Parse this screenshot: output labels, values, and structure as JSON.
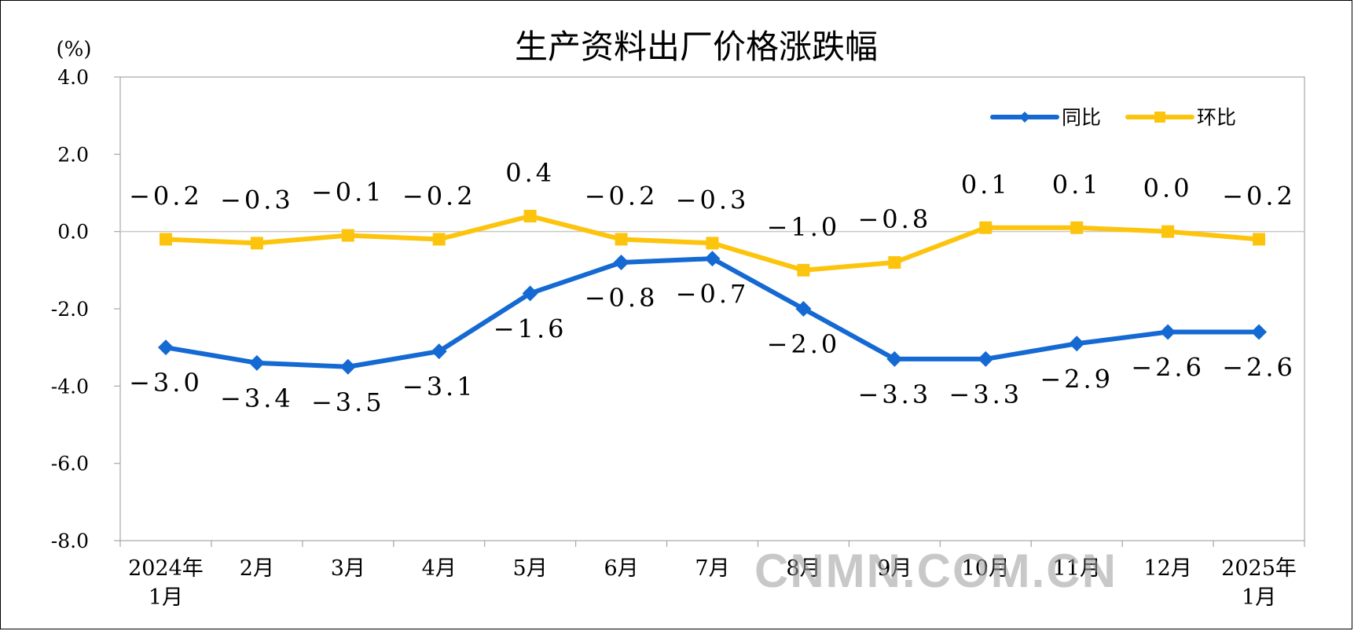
{
  "chart_data": {
    "type": "line",
    "title": "生产资料出厂价格涨跌幅",
    "unit": "(%)",
    "ylim": [
      -8.0,
      4.0
    ],
    "yticks": [
      "4.0",
      "2.0",
      "0.0",
      "-2.0",
      "-4.0",
      "-6.0",
      "-8.0"
    ],
    "categories": [
      "2024年 1月",
      "2月",
      "3月",
      "4月",
      "5月",
      "6月",
      "7月",
      "8月",
      "9月",
      "10月",
      "11月",
      "12月",
      "2025年 1月"
    ],
    "category_lines": [
      [
        "2024年",
        "1月"
      ],
      [
        "2月"
      ],
      [
        "3月"
      ],
      [
        "4月"
      ],
      [
        "5月"
      ],
      [
        "6月"
      ],
      [
        "7月"
      ],
      [
        "8月"
      ],
      [
        "9月"
      ],
      [
        "10月"
      ],
      [
        "11月"
      ],
      [
        "12月"
      ],
      [
        "2025年",
        "1月"
      ]
    ],
    "grid": false,
    "legend_position": "top-right",
    "series": [
      {
        "name": "同比",
        "color": "#1469d2",
        "marker": "diamond",
        "values": [
          -3.0,
          -3.4,
          -3.5,
          -3.1,
          -1.6,
          -0.8,
          -0.7,
          -2.0,
          -3.3,
          -3.3,
          -2.9,
          -2.6,
          -2.6
        ],
        "labels": [
          "-3.0",
          "-3.4",
          "-3.5",
          "-3.1",
          "-1.6",
          "-0.8",
          "-0.7",
          "-2.0",
          "-3.3",
          "-3.3",
          "-2.9",
          "-2.6",
          "-2.6"
        ]
      },
      {
        "name": "环比",
        "color": "#fcc40c",
        "marker": "square",
        "values": [
          -0.2,
          -0.3,
          -0.1,
          -0.2,
          0.4,
          -0.2,
          -0.3,
          -1.0,
          -0.8,
          0.1,
          0.1,
          0.0,
          -0.2
        ],
        "labels": [
          "-0.2",
          "-0.3",
          "-0.1",
          "-0.2",
          "0.4",
          "-0.2",
          "-0.3",
          "-1.0",
          "-0.8",
          "0.1",
          "0.1",
          "0.0",
          "-0.2"
        ]
      }
    ]
  },
  "watermark": "CNMN.COM.CN"
}
